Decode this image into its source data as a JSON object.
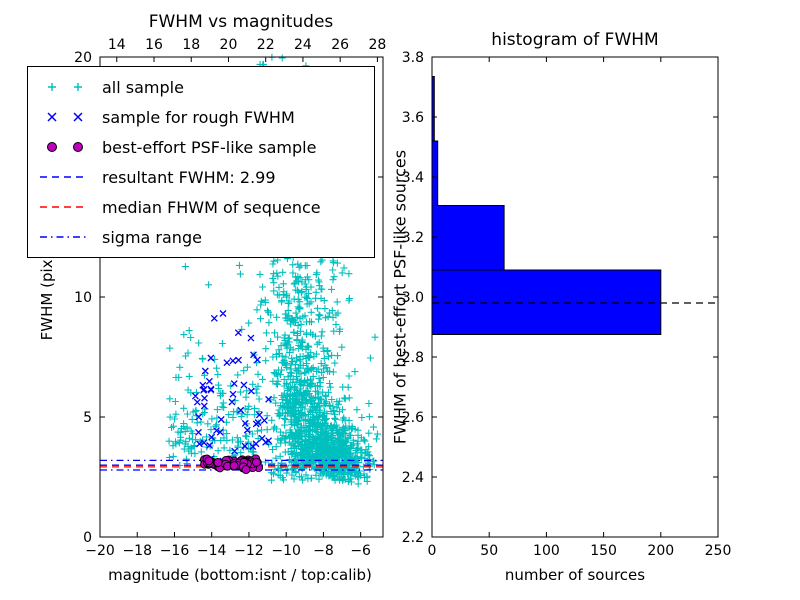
{
  "figure": {
    "background": "#ffffff"
  },
  "chart_data": [
    {
      "type": "scatter",
      "title": "FWHM vs magnitudes",
      "xlabel": "magnitude (bottom:isnt / top:calib)",
      "ylabel": "FWHM (pix)",
      "xlim": [
        -20,
        -4.8
      ],
      "xlim_top": [
        13.1,
        28.3
      ],
      "ylim": [
        0,
        20
      ],
      "xticks_bottom": {
        "values": [
          -20,
          -18,
          -16,
          -14,
          -12,
          -10,
          -8,
          -6
        ],
        "labels": [
          "−20",
          "−18",
          "−16",
          "−14",
          "−12",
          "−10",
          "−8",
          "−6"
        ]
      },
      "xticks_top": {
        "values": [
          14,
          16,
          18,
          20,
          22,
          24,
          26,
          28
        ],
        "labels": [
          "14",
          "16",
          "18",
          "20",
          "22",
          "24",
          "26",
          "28"
        ]
      },
      "yticks": {
        "values": [
          0,
          5,
          10,
          15,
          20
        ],
        "labels": [
          "0",
          "5",
          "10",
          "15",
          "20"
        ]
      },
      "series": [
        {
          "name": "all sample",
          "marker": "plus",
          "color": "#00bfbf",
          "clusters": [
            {
              "n": 650,
              "x": {
                "dist": "normal",
                "mean": -8.2,
                "sd": 1.05,
                "min": -11.6,
                "max": -5.0
              },
              "y": {
                "dist": "lognormal",
                "base": 2.55,
                "mu": 0.35,
                "sigma": 0.65,
                "max": 20
              }
            },
            {
              "n": 420,
              "x": {
                "dist": "normal",
                "mean": -9.4,
                "sd": 0.75,
                "min": -11.6,
                "max": -6.5
              },
              "y": {
                "dist": "lognormal",
                "base": 3.0,
                "mu": 1.35,
                "sigma": 0.6,
                "max": 19.8
              }
            },
            {
              "n": 200,
              "x": {
                "dist": "uniform",
                "min": -11.4,
                "max": -6.6
              },
              "y": {
                "dist": "uniform",
                "min": 9,
                "max": 20
              }
            },
            {
              "n": 190,
              "x": {
                "dist": "uniform",
                "min": -16.3,
                "max": -11.3
              },
              "y": {
                "dist": "lognormal",
                "base": 2.9,
                "mu": 0.7,
                "sigma": 1.0,
                "max": 20
              }
            },
            {
              "n": 170,
              "x": {
                "dist": "normal",
                "mean": -6.9,
                "sd": 0.75,
                "min": -8.6,
                "max": -5.0
              },
              "y": {
                "dist": "normal",
                "mean": 3.3,
                "sd": 0.55,
                "min": 2.2,
                "max": 5.2
              }
            },
            {
              "n": 90,
              "x": {
                "dist": "uniform",
                "min": -10.8,
                "max": -5.4
              },
              "y": {
                "dist": "uniform",
                "min": 2.35,
                "max": 3.1
              }
            }
          ]
        },
        {
          "name": "sample for rough FWHM",
          "marker": "x",
          "color": "#0000ff",
          "clusters": [
            {
              "n": 55,
              "x": {
                "dist": "uniform",
                "min": -14.9,
                "max": -10.9
              },
              "y": {
                "dist": "halfnormal",
                "base": 2.95,
                "sd": 2.6,
                "max": 13.3
              }
            }
          ]
        },
        {
          "name": "best-effort PSF-like sample",
          "marker": "circle",
          "color": "#bf00bf",
          "edge_color": "#000000",
          "clusters": [
            {
              "n": 70,
              "x": {
                "dist": "uniform",
                "min": -14.4,
                "max": -11.4
              },
              "y": {
                "dist": "normal",
                "mean": 3.05,
                "sd": 0.1,
                "min": 2.8,
                "max": 3.35
              }
            }
          ]
        }
      ],
      "hlines": [
        {
          "label": "resultant FWHM: 2.99",
          "y": 2.99,
          "style": "dashed",
          "color": "#0000ff"
        },
        {
          "label": "median FHWM of sequence",
          "y": 2.92,
          "style": "dashed",
          "color": "#ff0000"
        },
        {
          "label": "sigma range (upper)",
          "y": 3.19,
          "style": "dashdot",
          "color": "#0000ff"
        },
        {
          "label": "sigma range (lower)",
          "y": 2.79,
          "style": "dashdot",
          "color": "#0000ff"
        }
      ],
      "legend": {
        "items": [
          {
            "label": "all sample",
            "marker": "plus",
            "color": "#00bfbf"
          },
          {
            "label": "sample for rough FWHM",
            "marker": "x",
            "color": "#0000ff"
          },
          {
            "label": "best-effort PSF-like sample",
            "marker": "circle",
            "color": "#bf00bf",
            "edge_color": "#000000"
          },
          {
            "label": "resultant FWHM: 2.99",
            "marker": "dashed",
            "color": "#0000ff"
          },
          {
            "label": "median FHWM of sequence",
            "marker": "dashed",
            "color": "#ff0000"
          },
          {
            "label": "sigma range",
            "marker": "dashdot",
            "color": "#0000ff"
          }
        ]
      }
    },
    {
      "type": "bar",
      "orientation": "horizontal",
      "title": "histogram of FWHM",
      "xlabel": "number of sources",
      "ylabel": "FWHM of best-effort PSF-like sources",
      "xlim": [
        0,
        250
      ],
      "ylim": [
        2.2,
        3.8
      ],
      "xticks": {
        "values": [
          0,
          50,
          100,
          150,
          200,
          250
        ],
        "labels": [
          "0",
          "50",
          "100",
          "150",
          "200",
          "250"
        ]
      },
      "yticks": {
        "values": [
          2.2,
          2.4,
          2.6,
          2.8,
          3.0,
          3.2,
          3.4,
          3.6,
          3.8
        ],
        "labels": [
          "2.2",
          "2.4",
          "2.6",
          "2.8",
          "3.0",
          "3.2",
          "3.4",
          "3.6",
          "3.8"
        ]
      },
      "bar_color": "#0000ff",
      "bar_edge_color": "#000000",
      "bins": [
        {
          "y_range": [
            2.875,
            3.09
          ],
          "count": 200
        },
        {
          "y_range": [
            3.09,
            3.305
          ],
          "count": 63
        },
        {
          "y_range": [
            3.305,
            3.52
          ],
          "count": 5
        },
        {
          "y_range": [
            3.52,
            3.735
          ],
          "count": 2
        }
      ],
      "median_line": {
        "y": 2.98,
        "style": "dashed",
        "color": "#000000"
      }
    }
  ]
}
